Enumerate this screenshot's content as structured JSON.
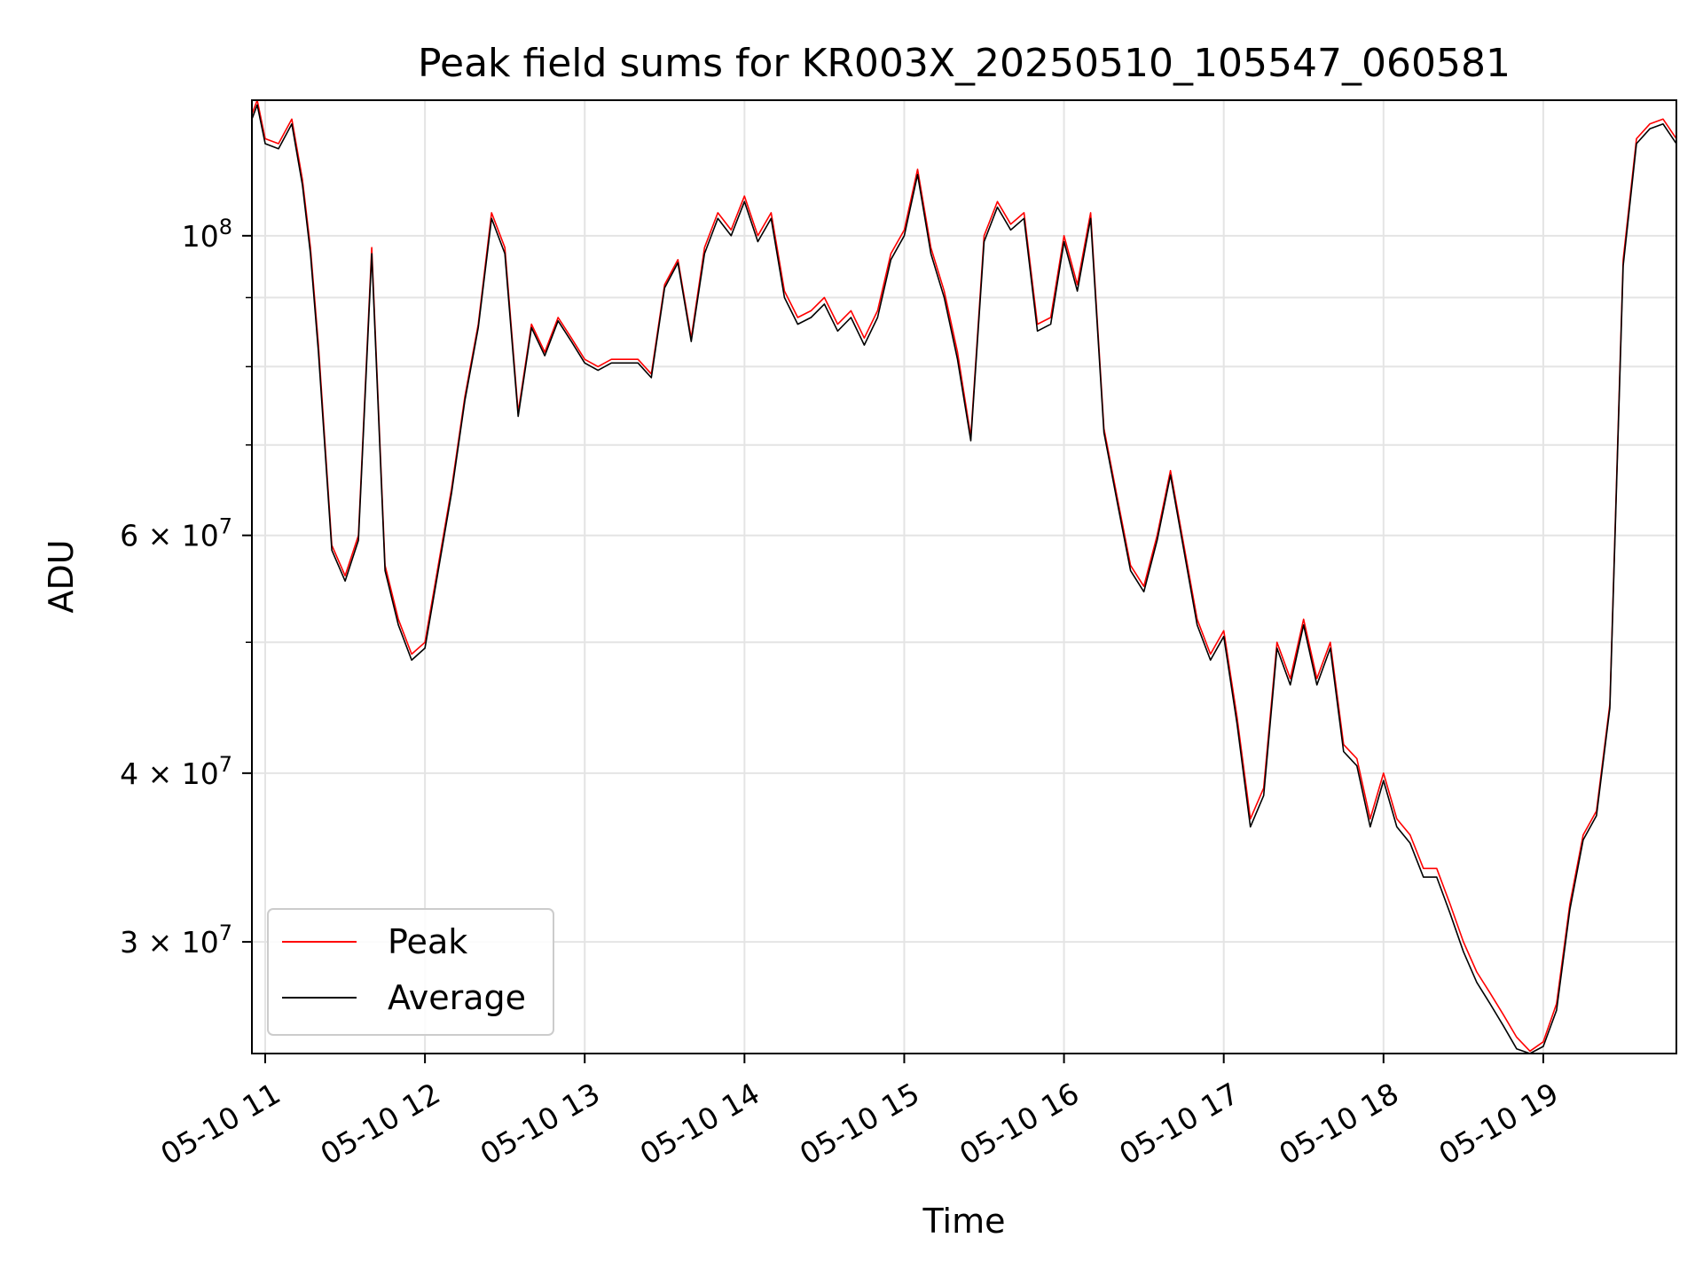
{
  "chart_data": {
    "type": "line",
    "title": "Peak field sums for KR003X_20250510_105547_060581",
    "xlabel": "Time",
    "ylabel": "ADU",
    "yscale": "log",
    "ylim": [
      24800000,
      126000000
    ],
    "xlim": [
      "2025-05-10 10:55",
      "2025-05-10 19:50"
    ],
    "grid": true,
    "legend_position": "lower-left",
    "x_ticks": [
      "05-10 11",
      "05-10 12",
      "05-10 13",
      "05-10 14",
      "05-10 15",
      "05-10 16",
      "05-10 17",
      "05-10 18",
      "05-10 19"
    ],
    "x_tick_times": [
      "11:00",
      "12:00",
      "13:00",
      "14:00",
      "15:00",
      "16:00",
      "17:00",
      "18:00",
      "19:00"
    ],
    "y_ticks": [
      {
        "value": 100000000,
        "mant": "",
        "exp": "8"
      },
      {
        "value": 60000000,
        "mant": "6",
        "exp": "7"
      },
      {
        "value": 40000000,
        "mant": "4",
        "exp": "7"
      },
      {
        "value": 30000000,
        "mant": "3",
        "exp": "7"
      }
    ],
    "y_minor_ticks": [
      90000000,
      80000000,
      70000000,
      50000000
    ],
    "x": [
      "10:55",
      "10:57",
      "11:00",
      "11:05",
      "11:10",
      "11:14",
      "11:17",
      "11:20",
      "11:25",
      "11:30",
      "11:35",
      "11:40",
      "11:45",
      "11:50",
      "11:55",
      "12:00",
      "12:05",
      "12:10",
      "12:15",
      "12:20",
      "12:25",
      "12:30",
      "12:35",
      "12:40",
      "12:45",
      "12:50",
      "12:55",
      "13:00",
      "13:05",
      "13:10",
      "13:15",
      "13:20",
      "13:25",
      "13:30",
      "13:35",
      "13:40",
      "13:45",
      "13:50",
      "13:55",
      "14:00",
      "14:05",
      "14:10",
      "14:15",
      "14:20",
      "14:25",
      "14:30",
      "14:35",
      "14:40",
      "14:45",
      "14:50",
      "14:55",
      "15:00",
      "15:05",
      "15:10",
      "15:15",
      "15:20",
      "15:25",
      "15:30",
      "15:35",
      "15:40",
      "15:45",
      "15:50",
      "15:55",
      "16:00",
      "16:05",
      "16:10",
      "16:15",
      "16:20",
      "16:25",
      "16:30",
      "16:35",
      "16:40",
      "16:45",
      "16:50",
      "16:55",
      "17:00",
      "17:05",
      "17:10",
      "17:15",
      "17:20",
      "17:25",
      "17:30",
      "17:35",
      "17:40",
      "17:45",
      "17:50",
      "17:55",
      "18:00",
      "18:05",
      "18:10",
      "18:15",
      "18:20",
      "18:25",
      "18:30",
      "18:35",
      "18:40",
      "18:45",
      "18:50",
      "18:55",
      "19:00",
      "19:05",
      "19:10",
      "19:15",
      "19:20",
      "19:25",
      "19:30",
      "19:35",
      "19:40",
      "19:45",
      "19:50"
    ],
    "series": [
      {
        "name": "Peak",
        "color": "#ff0000",
        "values": [
          123000000,
          126000000,
          118000000,
          117000000,
          122000000,
          110000000,
          98000000,
          83000000,
          59000000,
          56000000,
          60000000,
          98000000,
          57000000,
          52000000,
          49000000,
          50000000,
          57000000,
          65000000,
          76000000,
          86000000,
          104000000,
          98000000,
          74000000,
          86000000,
          82000000,
          87000000,
          84000000,
          81000000,
          80000000,
          81000000,
          81000000,
          81000000,
          79000000,
          92000000,
          96000000,
          84000000,
          98000000,
          104000000,
          101000000,
          107000000,
          100000000,
          104000000,
          91000000,
          87000000,
          88000000,
          90000000,
          86000000,
          88000000,
          84000000,
          88000000,
          97000000,
          101000000,
          112000000,
          98000000,
          91000000,
          82000000,
          71000000,
          100000000,
          106000000,
          102000000,
          104000000,
          86000000,
          87000000,
          100000000,
          92000000,
          104000000,
          72000000,
          64000000,
          57000000,
          55000000,
          60000000,
          67000000,
          59000000,
          52000000,
          49000000,
          51000000,
          44000000,
          37000000,
          39000000,
          50000000,
          47000000,
          52000000,
          47000000,
          50000000,
          42000000,
          41000000,
          37000000,
          40000000,
          37000000,
          36000000,
          34000000,
          34000000,
          32000000,
          30000000,
          28500000,
          27500000,
          26500000,
          25500000,
          24900000,
          25300000,
          27000000,
          32000000,
          36000000,
          37500000,
          45000000,
          96000000,
          118000000,
          121000000,
          122000000,
          118000000
        ]
      },
      {
        "name": "Average",
        "color": "#000000",
        "values": [
          122000000,
          125000000,
          117000000,
          116000000,
          121000000,
          109000000,
          97000000,
          82000000,
          58500000,
          55500000,
          59500000,
          97000000,
          56500000,
          51500000,
          48500000,
          49500000,
          56500000,
          64500000,
          75500000,
          85500000,
          103000000,
          97000000,
          73500000,
          85500000,
          81500000,
          86500000,
          83500000,
          80500000,
          79500000,
          80500000,
          80500000,
          80500000,
          78500000,
          91500000,
          95500000,
          83500000,
          97000000,
          103000000,
          100000000,
          106000000,
          99000000,
          103000000,
          90000000,
          86000000,
          87000000,
          89000000,
          85000000,
          87000000,
          83000000,
          87000000,
          96000000,
          100000000,
          111000000,
          97000000,
          90000000,
          81000000,
          70500000,
          99000000,
          105000000,
          101000000,
          103000000,
          85000000,
          86000000,
          99000000,
          91000000,
          103000000,
          71500000,
          63500000,
          56500000,
          54500000,
          59500000,
          66500000,
          58500000,
          51500000,
          48500000,
          50500000,
          43500000,
          36500000,
          38500000,
          49500000,
          46500000,
          51500000,
          46500000,
          49500000,
          41500000,
          40500000,
          36500000,
          39500000,
          36500000,
          35500000,
          33500000,
          33500000,
          31500000,
          29500000,
          28000000,
          27000000,
          26000000,
          25000000,
          24800000,
          25100000,
          26700000,
          31700000,
          35700000,
          37200000,
          44700000,
          95000000,
          117000000,
          120000000,
          121000000,
          117000000
        ]
      }
    ]
  }
}
